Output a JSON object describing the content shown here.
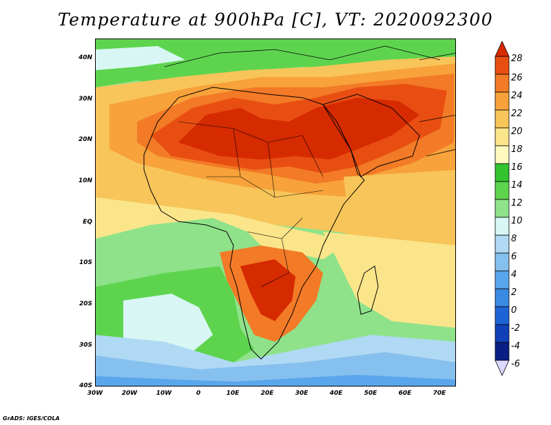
{
  "title": "Temperature at 900hPa [C], VT: 2020092300",
  "credit": "GrADS: IGES/COLA",
  "map": {
    "projection": "lat-lon",
    "lon_range": [
      -30,
      75
    ],
    "lat_range": [
      -40,
      45
    ],
    "lat_ticks": [
      "40N",
      "30N",
      "20N",
      "10N",
      "EQ",
      "10S",
      "20S",
      "30S",
      "40S"
    ],
    "lon_ticks": [
      "30W",
      "20W",
      "10W",
      "0",
      "10E",
      "20E",
      "30E",
      "40E",
      "50E",
      "60E",
      "70E"
    ],
    "field": "temperature_900hPa",
    "coastline_color": "#000000"
  },
  "colorbar": {
    "labels": [
      "28",
      "26",
      "24",
      "22",
      "20",
      "18",
      "16",
      "14",
      "12",
      "10",
      "8",
      "6",
      "4",
      "2",
      "0",
      "-2",
      "-4",
      "-6"
    ],
    "colors": [
      "#d62a00",
      "#e84e12",
      "#f37a26",
      "#f7a23a",
      "#f8c55a",
      "#fbe58a",
      "#fef9be",
      "#33c42f",
      "#5ed44e",
      "#8fe28a",
      "#d8f7f4",
      "#b0d9f4",
      "#86c0ef",
      "#5aa6ec",
      "#3a8ae4",
      "#1e64d6",
      "#1140b8",
      "#0a1f86",
      "#dcd8ff"
    ]
  }
}
